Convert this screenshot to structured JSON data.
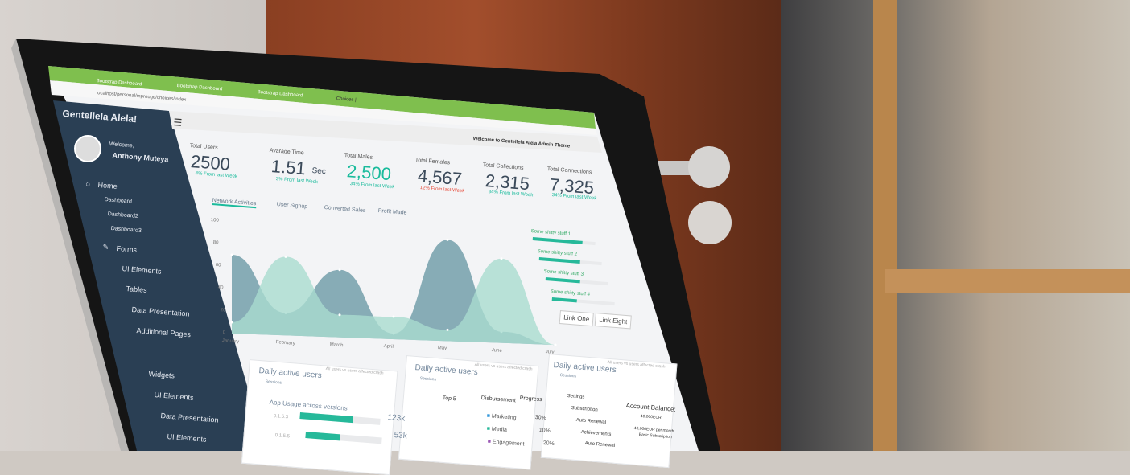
{
  "browser": {
    "tabs": [
      "Bootstrap Dashboard",
      "Bootstrap Dashboard",
      "Bootstrap Dashboard",
      "Choices |"
    ],
    "url": "localhost/personal/mprouge/choices/index"
  },
  "sidebar": {
    "brand": "Gentellela Alela!",
    "welcome": "Welcome,",
    "user": "Anthony Muteya",
    "items": [
      {
        "label": "Home",
        "icon": "home-icon"
      },
      {
        "label": "Dashboard"
      },
      {
        "label": "Dashboard2"
      },
      {
        "label": "Dashboard3"
      },
      {
        "label": "Forms",
        "icon": "edit-icon"
      },
      {
        "label": "UI Elements",
        "icon": "desktop-icon"
      },
      {
        "label": "Tables",
        "icon": "table-icon"
      },
      {
        "label": "Data Presentation",
        "icon": "chart-icon"
      },
      {
        "label": "Additional Pages",
        "icon": "clone-icon"
      },
      {
        "label": "Widgets",
        "icon": "widget-icon"
      },
      {
        "label": "UI Elements"
      },
      {
        "label": "Data Presentation"
      },
      {
        "label": "UI Elements"
      }
    ]
  },
  "topbar": {
    "welcome": "Welcome to Gentellela Alela Admin Theme"
  },
  "stats": [
    {
      "label": "Total Users",
      "value": "2500",
      "change": "4% From last Week",
      "color": "#3b4a5a"
    },
    {
      "label": "Avarage Time",
      "value": "1.51",
      "unit": "Sec",
      "change": "3% From last Week",
      "color": "#3b4a5a"
    },
    {
      "label": "Total Males",
      "value": "2,500",
      "change": "34% From last Week",
      "color": "#1abb9c"
    },
    {
      "label": "Total Females",
      "value": "4,567",
      "change": "12% From last Week",
      "color": "#3b4a5a"
    },
    {
      "label": "Total Collections",
      "value": "2,315",
      "change": "34% From last Week",
      "color": "#3b4a5a"
    },
    {
      "label": "Total Connections",
      "value": "7,325",
      "change": "34% From last Week",
      "color": "#3b4a5a"
    }
  ],
  "chart_tabs": [
    "Network Activities",
    "User Signup",
    "Converted Sales",
    "Profit Made"
  ],
  "chart_data": {
    "type": "area",
    "x": [
      "January",
      "February",
      "March",
      "April",
      "May",
      "June",
      "July"
    ],
    "yticks": [
      "100",
      "80",
      "60",
      "40",
      "20",
      "0"
    ],
    "series": [
      {
        "values": [
          70,
          20,
          60,
          5,
          90,
          10,
          0
        ],
        "color": "#6b9aa6"
      },
      {
        "values": [
          10,
          70,
          20,
          20,
          10,
          75,
          0
        ],
        "color": "#a9dccf"
      }
    ]
  },
  "progress": [
    {
      "label": "Some shitty stuff 1",
      "value": 0.8
    },
    {
      "label": "Some shitty stuff 2",
      "value": 0.65
    },
    {
      "label": "Some shitty stuff 3",
      "value": 0.55
    },
    {
      "label": "Some shitty stuff 4",
      "value": 0.4
    }
  ],
  "links": [
    "Link One",
    "Link Eight"
  ],
  "panels": [
    {
      "title": "Daily active users",
      "sub": "Sessions",
      "note": "All users vs users affected crash"
    },
    {
      "title": "Daily active users",
      "sub": "Sessions",
      "note": "All users vs users affected crash"
    },
    {
      "title": "Daily active users",
      "sub": "Sessions",
      "note": "All users vs users affected crash"
    }
  ],
  "app_usage": {
    "title": "App Usage across versions",
    "rows": [
      {
        "version": "0.1.5.3",
        "value": "123k",
        "fill": 0.66
      },
      {
        "version": "0.1.5.5",
        "value": "53k",
        "fill": 0.45
      }
    ]
  },
  "top5": {
    "headers": [
      "Top 5",
      "Disbursement",
      "Progress"
    ],
    "items": [
      {
        "label": "Marketing",
        "pct": "30%",
        "color": "#3498db"
      },
      {
        "label": "Media",
        "pct": "10%",
        "color": "#26b99a"
      },
      {
        "label": "Engagement",
        "pct": "20%",
        "color": "#9b59b6"
      }
    ]
  },
  "settings": {
    "items": [
      "Settings",
      "Subscription",
      "Auto Renewal",
      "Achievements",
      "Auto Renewal"
    ],
    "balance_title": "Account Balance:",
    "balance": "40,000EUR",
    "plan": "40,000EUR per month",
    "plan_name": "Basic Subscription"
  }
}
